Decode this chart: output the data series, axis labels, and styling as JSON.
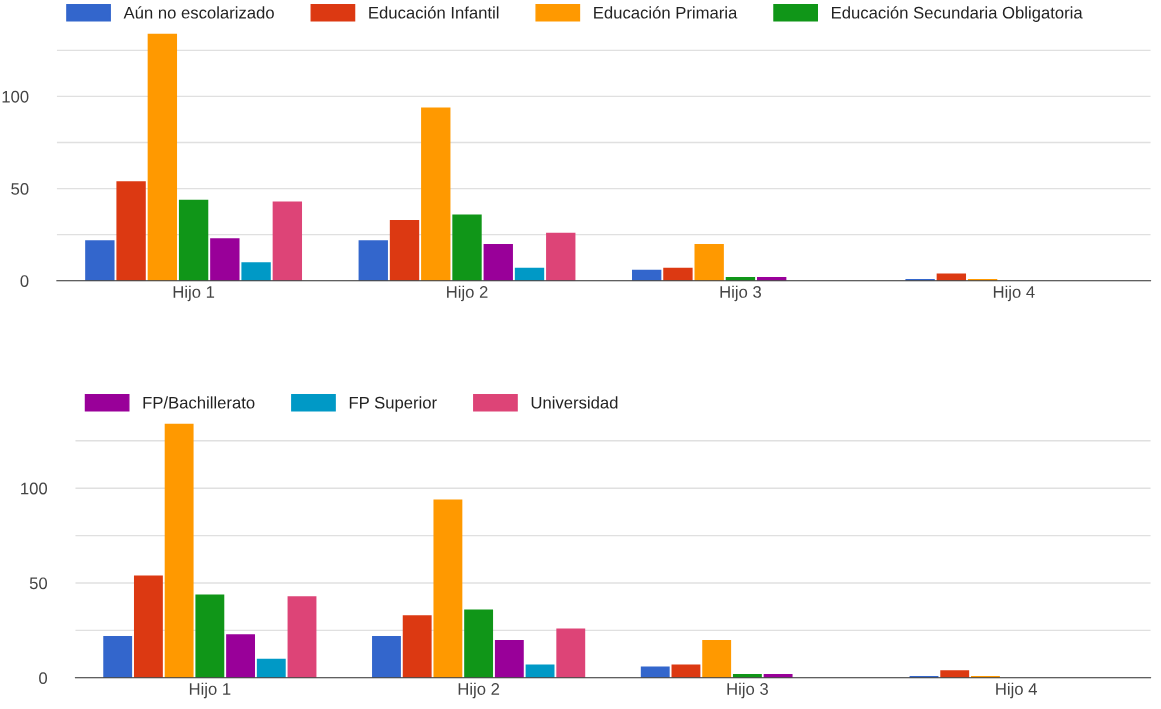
{
  "chart_data": [
    {
      "type": "bar",
      "categories": [
        "Hijo 1",
        "Hijo 2",
        "Hijo 3",
        "Hijo 4"
      ],
      "ylim": [
        0,
        135
      ],
      "yticks": [
        0,
        {
          "value": 25,
          "label": null
        },
        50,
        {
          "value": 75,
          "label": null
        },
        100,
        {
          "value": 125,
          "label": null
        }
      ],
      "grid": "y",
      "legend": "top",
      "series": [
        {
          "name": "Aún no escolarizado",
          "color": "#3366cc",
          "values": [
            22,
            22,
            6,
            1
          ]
        },
        {
          "name": "Educación Infantil",
          "color": "#dc3912",
          "values": [
            54,
            33,
            7,
            4
          ]
        },
        {
          "name": "Educación Primaria",
          "color": "#ff9900",
          "values": [
            134,
            94,
            20,
            1
          ]
        },
        {
          "name": "Educación Secundaria Obligatoria",
          "color": "#109618",
          "values": [
            44,
            36,
            2,
            0
          ]
        },
        {
          "color": "#990099",
          "values": [
            23,
            20,
            2,
            0
          ]
        },
        {
          "color": "#0099c6",
          "values": [
            10,
            7,
            0,
            0
          ]
        },
        {
          "color": "#dd4477",
          "values": [
            43,
            26,
            0,
            0
          ]
        }
      ]
    },
    {
      "type": "bar",
      "categories": [
        "Hijo 1",
        "Hijo 2",
        "Hijo 3",
        "Hijo 4"
      ],
      "ylim": [
        0,
        135
      ],
      "yticks": [
        0,
        {
          "value": 25,
          "label": null
        },
        50,
        {
          "value": 75,
          "label": null
        },
        100,
        {
          "value": 125,
          "label": null
        }
      ],
      "grid": "y",
      "legend": "top",
      "series": [
        {
          "color": "#3366cc",
          "values": [
            22,
            22,
            6,
            1
          ]
        },
        {
          "color": "#dc3912",
          "values": [
            54,
            33,
            7,
            4
          ]
        },
        {
          "color": "#ff9900",
          "values": [
            134,
            94,
            20,
            1
          ]
        },
        {
          "color": "#109618",
          "values": [
            44,
            36,
            2,
            0
          ]
        },
        {
          "name": "FP/Bachillerato",
          "color": "#990099",
          "values": [
            23,
            20,
            2,
            0
          ]
        },
        {
          "name": "FP Superior",
          "color": "#0099c6",
          "values": [
            10,
            7,
            0,
            0
          ]
        },
        {
          "name": "Universidad",
          "color": "#dd4477",
          "values": [
            43,
            26,
            0,
            0
          ]
        }
      ]
    }
  ]
}
